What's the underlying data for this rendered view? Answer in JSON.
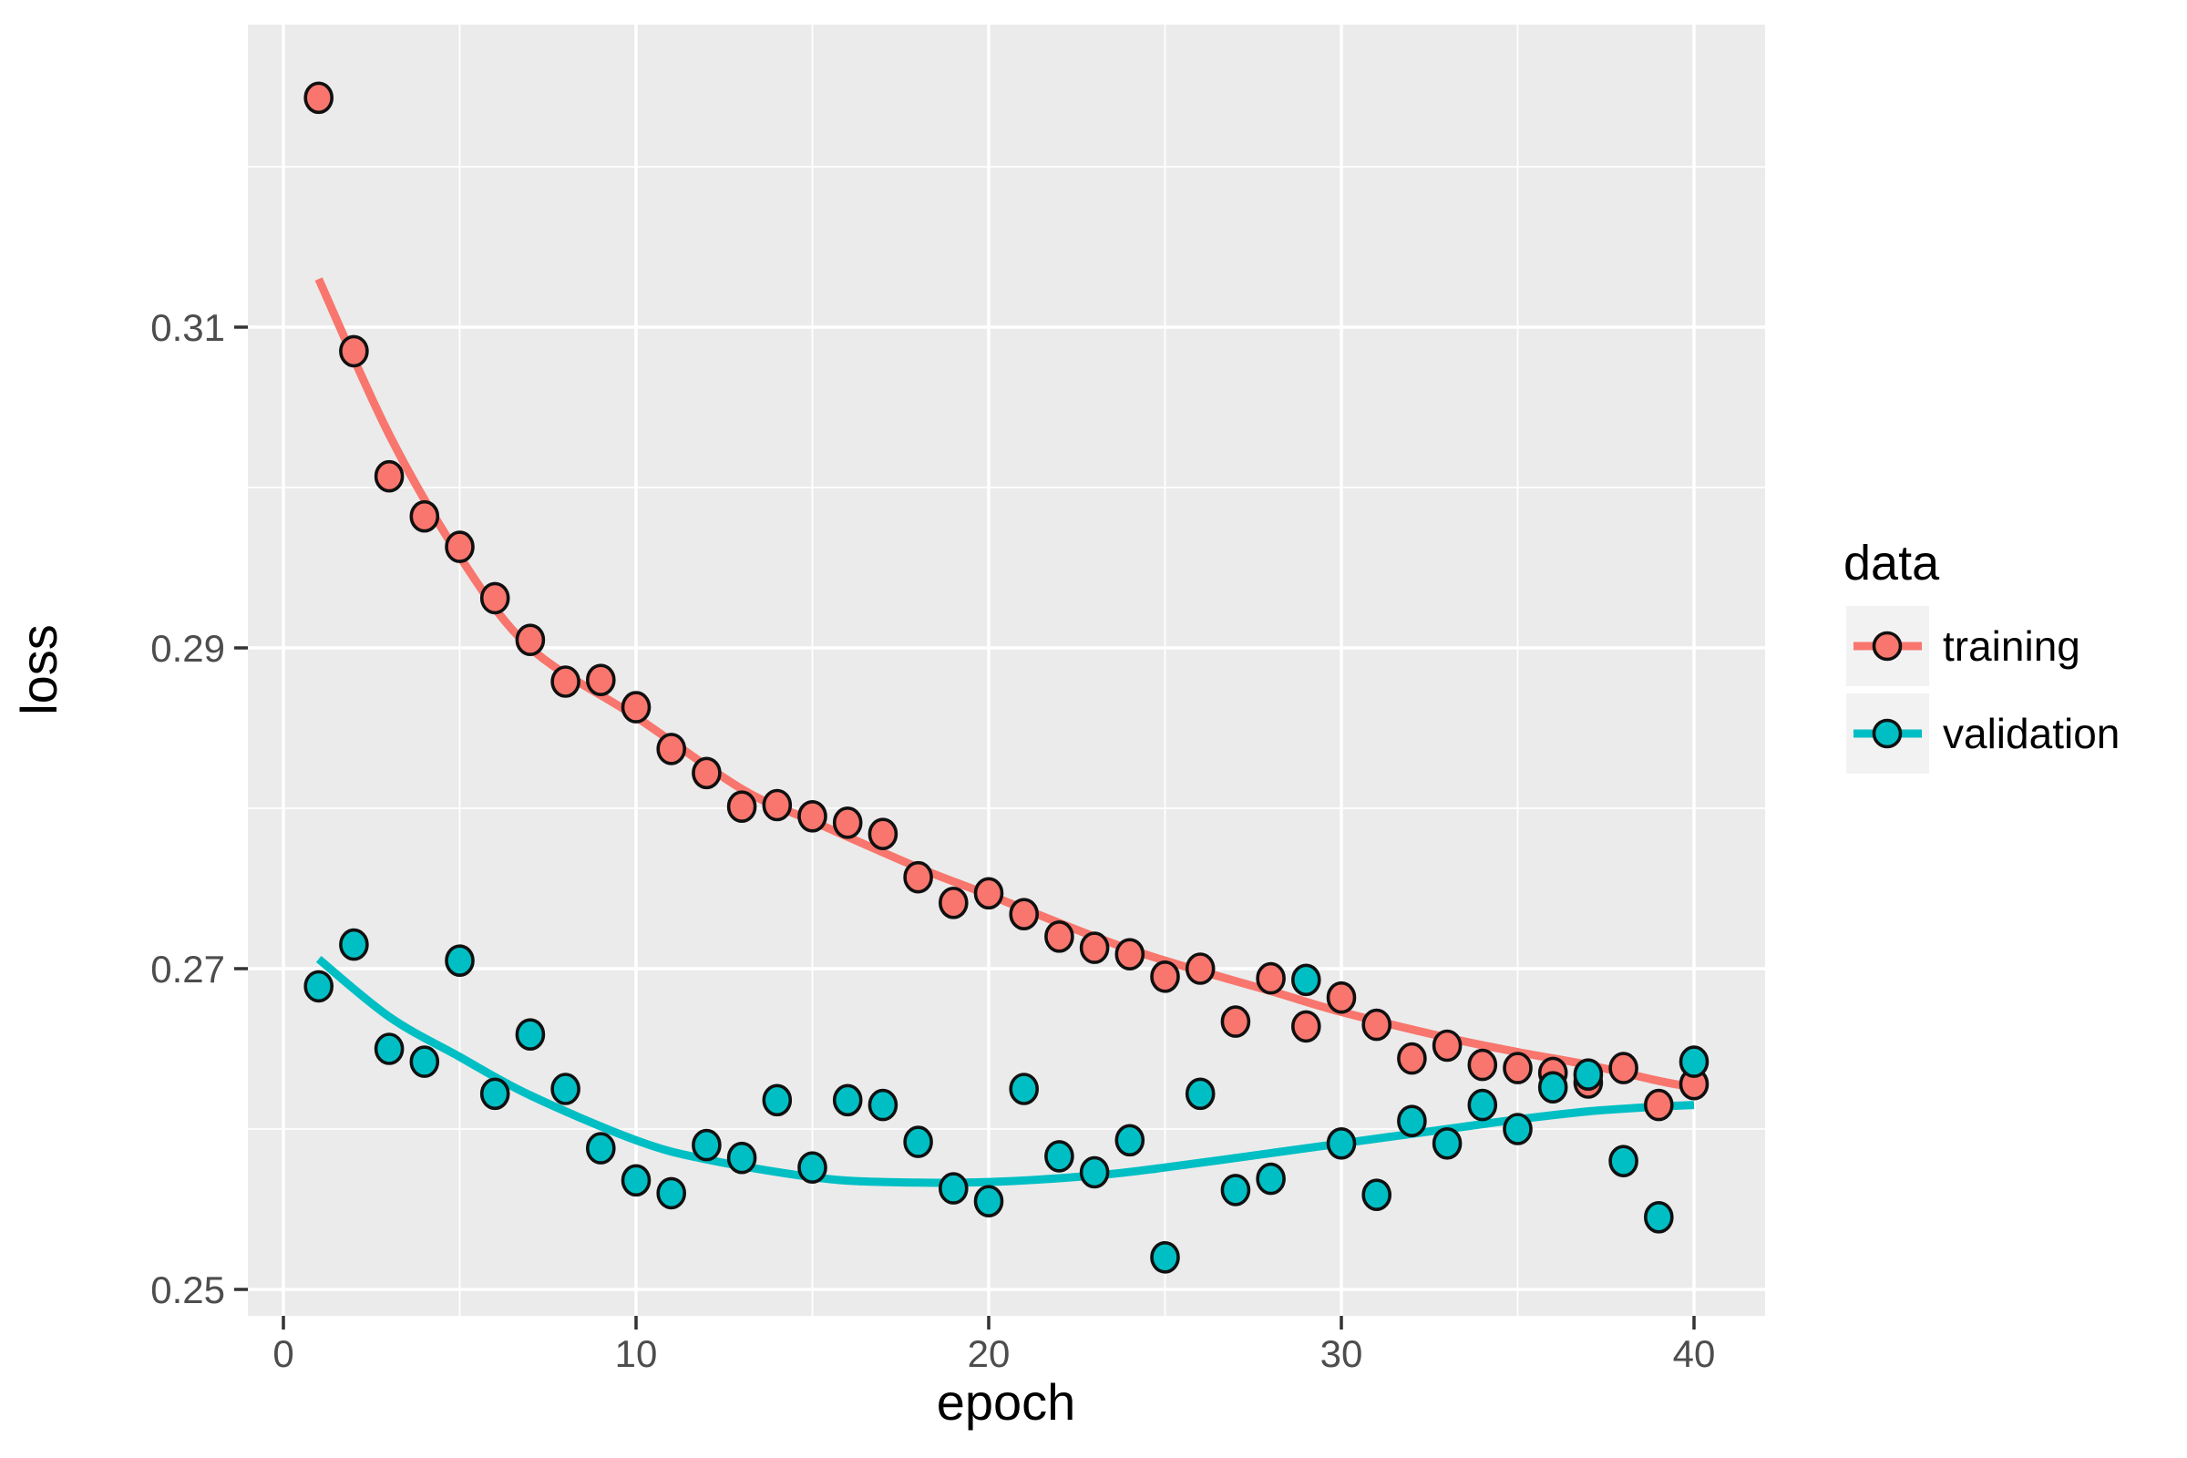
{
  "chart_data": {
    "type": "scatter",
    "title": "",
    "xlabel": "epoch",
    "ylabel": "loss",
    "legend": {
      "title": "data",
      "position": "right",
      "entries": [
        {
          "label": "training",
          "color": "#F8766D"
        },
        {
          "label": "validation",
          "color": "#00BFC4"
        }
      ]
    },
    "x_epoch_start": 1,
    "x_major_ticks": [
      0,
      10,
      20,
      30,
      40
    ],
    "x_minor_ticks": [
      5,
      15,
      25,
      35
    ],
    "x_tick_labels": [
      "0",
      "10",
      "20",
      "30",
      "40"
    ],
    "y_major_ticks": [
      0.25,
      0.27,
      0.29,
      0.31
    ],
    "y_minor_ticks": [
      0.26,
      0.28,
      0.3,
      0.32
    ],
    "y_tick_labels": [
      "0.25",
      "0.27",
      "0.29",
      "0.31"
    ],
    "xlim": [
      -1.0,
      42.0
    ],
    "ylim": [
      0.2484,
      0.3289
    ],
    "grid": "white major+minor gridlines on grey panel",
    "series": [
      {
        "name": "training",
        "color": "#F8766D",
        "values": [
          0.3243,
          0.3085,
          0.3007,
          0.2982,
          0.2963,
          0.2931,
          0.2905,
          0.2879,
          0.288,
          0.2863,
          0.2837,
          0.2822,
          0.2801,
          0.2802,
          0.2795,
          0.2791,
          0.2784,
          0.2757,
          0.2741,
          0.2747,
          0.2734,
          0.272,
          0.2713,
          0.2709,
          0.2695,
          0.27,
          0.2667,
          0.2694,
          0.2664,
          0.2682,
          0.2665,
          0.2644,
          0.2652,
          0.264,
          0.2638,
          0.2635,
          0.2629,
          0.2638,
          0.2615,
          0.2628
        ]
      },
      {
        "name": "validation",
        "color": "#00BFC4",
        "values": [
          0.2689,
          0.2715,
          0.265,
          0.2642,
          0.2705,
          0.2622,
          0.2659,
          0.2625,
          0.2588,
          0.2568,
          0.256,
          0.259,
          0.2582,
          0.2618,
          0.2576,
          0.2618,
          0.2615,
          0.2592,
          0.2563,
          0.2555,
          0.2625,
          0.2583,
          0.2573,
          0.2593,
          0.252,
          0.2622,
          0.2562,
          0.2569,
          0.2693,
          0.2591,
          0.2559,
          0.2605,
          0.2591,
          0.2615,
          0.26,
          0.2626,
          0.2634,
          0.258,
          0.2545,
          0.2642
        ]
      }
    ],
    "smooth_lines": [
      {
        "name": "training",
        "color": "#F8766D",
        "anchors": [
          [
            1,
            0.313
          ],
          [
            3,
            0.3033
          ],
          [
            5,
            0.2957
          ],
          [
            7,
            0.29
          ],
          [
            10,
            0.2857
          ],
          [
            13,
            0.2812
          ],
          [
            15,
            0.2792
          ],
          [
            18,
            0.2763
          ],
          [
            20,
            0.2746
          ],
          [
            23,
            0.272
          ],
          [
            25,
            0.2705
          ],
          [
            28,
            0.2686
          ],
          [
            30,
            0.2673
          ],
          [
            33,
            0.2657
          ],
          [
            35,
            0.2648
          ],
          [
            37,
            0.264
          ],
          [
            39,
            0.263
          ],
          [
            40,
            0.2626
          ]
        ]
      },
      {
        "name": "validation",
        "color": "#00BFC4",
        "anchors": [
          [
            1,
            0.2706
          ],
          [
            3,
            0.267
          ],
          [
            5,
            0.2645
          ],
          [
            7,
            0.2621
          ],
          [
            10,
            0.2593
          ],
          [
            12,
            0.2581
          ],
          [
            15,
            0.257
          ],
          [
            17,
            0.2567
          ],
          [
            20,
            0.2567
          ],
          [
            23,
            0.2571
          ],
          [
            25,
            0.2576
          ],
          [
            28,
            0.2585
          ],
          [
            30,
            0.2591
          ],
          [
            33,
            0.26
          ],
          [
            35,
            0.2606
          ],
          [
            37,
            0.2611
          ],
          [
            39,
            0.2614
          ],
          [
            40,
            0.2615
          ]
        ]
      }
    ]
  },
  "colors": {
    "panel_bg": "#EBEBEB",
    "grid": "#FFFFFF",
    "tick_label": "#4D4D4D",
    "tick_mark": "#333333",
    "axis_title": "#000000",
    "legend_key_bg": "#F2F2F2",
    "point_stroke": "#101010",
    "page_bg": "#FFFFFF"
  }
}
